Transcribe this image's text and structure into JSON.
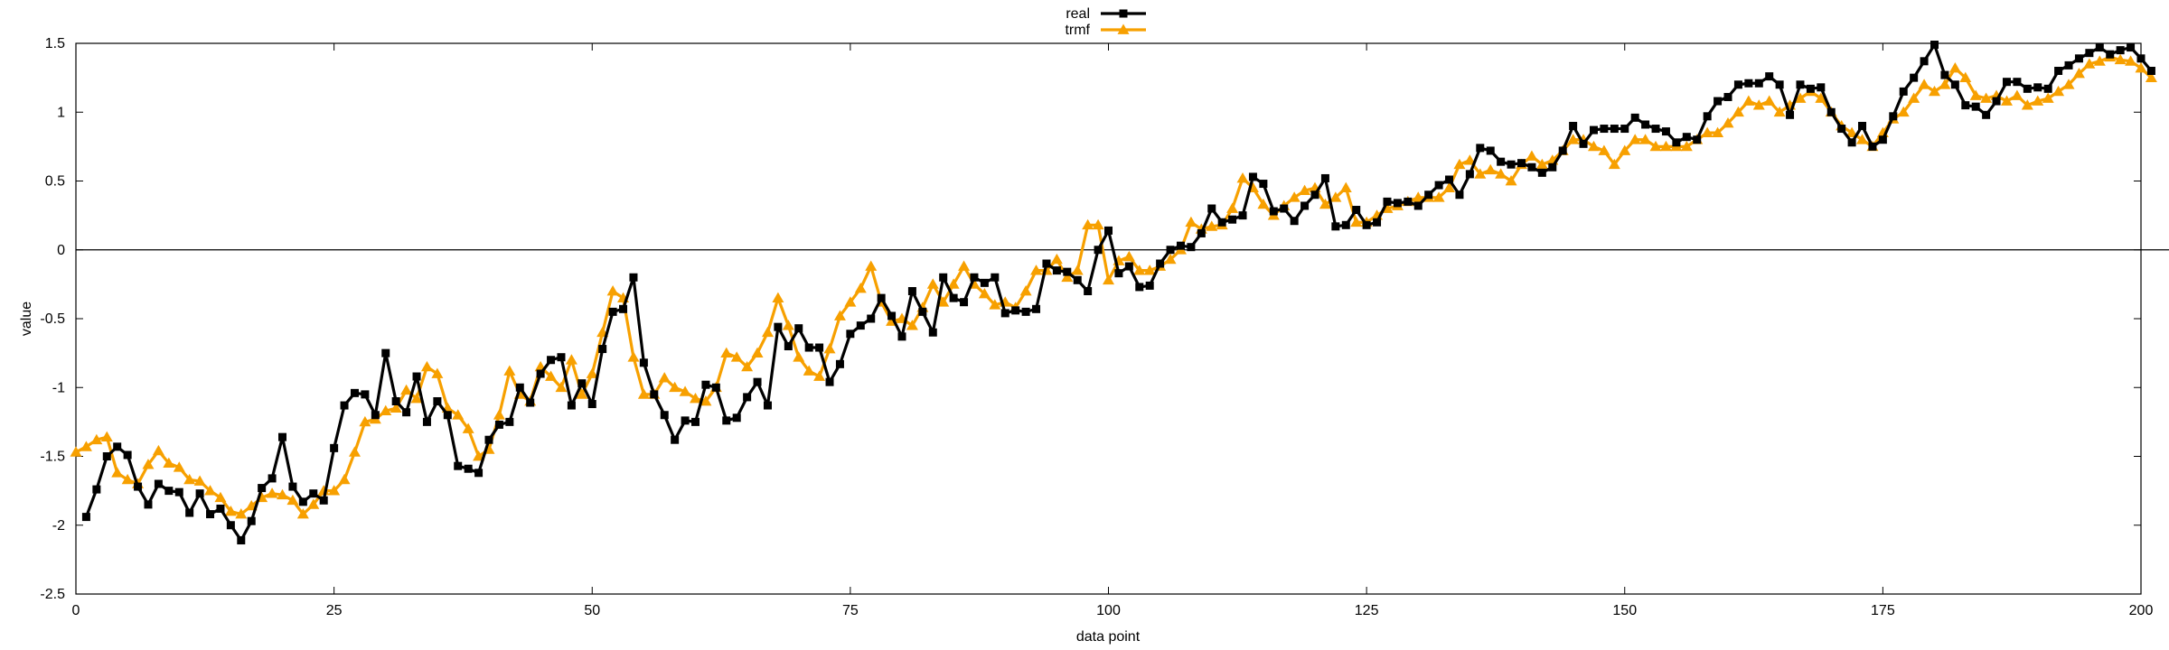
{
  "chart_data": {
    "type": "line",
    "title": "",
    "xlabel": "data point",
    "ylabel": "value",
    "xlim": [
      0,
      200
    ],
    "ylim": [
      -2.5,
      1.5
    ],
    "xticks": [
      0,
      25,
      50,
      75,
      100,
      125,
      150,
      175,
      200
    ],
    "xtick_labels": [
      "0",
      "25",
      "50",
      "75",
      "100",
      "125",
      "150",
      "175",
      "200"
    ],
    "yticks": [
      -2.5,
      -2,
      -1.5,
      -1,
      -0.5,
      0,
      0.5,
      1,
      1.5
    ],
    "ytick_labels": [
      "-2.5",
      "-2",
      "-1.5",
      "-1",
      "-0.5",
      "0",
      "0.5",
      "1",
      "1.5"
    ],
    "zero_line": true,
    "grid": false,
    "legend_position": "top-center",
    "series": [
      {
        "name": "real",
        "color": "#000000",
        "marker": "square",
        "x_start": 1,
        "values": [
          -1.94,
          -1.74,
          -1.5,
          -1.43,
          -1.49,
          -1.72,
          -1.85,
          -1.7,
          -1.75,
          -1.76,
          -1.91,
          -1.77,
          -1.92,
          -1.88,
          -2.0,
          -2.11,
          -1.97,
          -1.73,
          -1.66,
          -1.36,
          -1.72,
          -1.83,
          -1.77,
          -1.82,
          -1.44,
          -1.13,
          -1.04,
          -1.05,
          -1.2,
          -0.75,
          -1.1,
          -1.18,
          -0.92,
          -1.25,
          -1.1,
          -1.2,
          -1.57,
          -1.59,
          -1.62,
          -1.38,
          -1.27,
          -1.25,
          -1.0,
          -1.11,
          -0.9,
          -0.8,
          -0.78,
          -1.13,
          -0.97,
          -1.12,
          -0.72,
          -0.45,
          -0.43,
          -0.2,
          -0.82,
          -1.05,
          -1.2,
          -1.38,
          -1.24,
          -1.25,
          -0.98,
          -1.0,
          -1.24,
          -1.22,
          -1.07,
          -0.96,
          -1.13,
          -0.56,
          -0.7,
          -0.57,
          -0.71,
          -0.71,
          -0.96,
          -0.83,
          -0.61,
          -0.55,
          -0.5,
          -0.35,
          -0.48,
          -0.63,
          -0.3,
          -0.45,
          -0.6,
          -0.2,
          -0.35,
          -0.38,
          -0.2,
          -0.24,
          -0.2,
          -0.46,
          -0.44,
          -0.45,
          -0.43,
          -0.1,
          -0.15,
          -0.16,
          -0.22,
          -0.3,
          0.0,
          0.14,
          -0.17,
          -0.12,
          -0.27,
          -0.26,
          -0.1,
          0.0,
          0.03,
          0.02,
          0.12,
          0.3,
          0.2,
          0.22,
          0.25,
          0.53,
          0.48,
          0.28,
          0.3,
          0.21,
          0.32,
          0.4,
          0.52,
          0.17,
          0.18,
          0.29,
          0.18,
          0.2,
          0.35,
          0.34,
          0.35,
          0.32,
          0.4,
          0.47,
          0.51,
          0.4,
          0.55,
          0.74,
          0.72,
          0.64,
          0.62,
          0.63,
          0.6,
          0.56,
          0.6,
          0.72,
          0.9,
          0.77,
          0.87,
          0.88,
          0.88,
          0.88,
          0.96,
          0.91,
          0.88,
          0.86,
          0.78,
          0.82,
          0.8,
          0.97,
          1.08,
          1.11,
          1.2,
          1.21,
          1.21,
          1.26,
          1.2,
          0.98,
          1.2,
          1.17,
          1.18,
          1.0,
          0.88,
          0.78,
          0.9,
          0.75,
          0.8,
          0.97,
          1.15,
          1.25,
          1.37,
          1.49,
          1.27,
          1.2,
          1.05,
          1.04,
          0.98,
          1.08,
          1.22,
          1.22,
          1.17,
          1.18,
          1.17,
          1.3,
          1.34,
          1.39,
          1.43,
          1.47,
          1.42,
          1.45,
          1.47,
          1.39,
          1.3
        ]
      },
      {
        "name": "trmf",
        "color": "#f7a000",
        "marker": "triangle",
        "x_start": 0,
        "values": [
          -1.47,
          -1.43,
          -1.38,
          -1.36,
          -1.62,
          -1.67,
          -1.7,
          -1.56,
          -1.46,
          -1.55,
          -1.58,
          -1.67,
          -1.68,
          -1.75,
          -1.8,
          -1.9,
          -1.92,
          -1.86,
          -1.8,
          -1.77,
          -1.78,
          -1.82,
          -1.92,
          -1.85,
          -1.75,
          -1.75,
          -1.67,
          -1.47,
          -1.25,
          -1.23,
          -1.17,
          -1.15,
          -1.02,
          -1.08,
          -0.85,
          -0.9,
          -1.15,
          -1.2,
          -1.3,
          -1.5,
          -1.45,
          -1.2,
          -0.88,
          -1.05,
          -1.1,
          -0.85,
          -0.92,
          -1.0,
          -0.8,
          -1.05,
          -0.9,
          -0.6,
          -0.3,
          -0.35,
          -0.78,
          -1.05,
          -1.05,
          -0.93,
          -1.0,
          -1.03,
          -1.08,
          -1.1,
          -1.0,
          -0.75,
          -0.78,
          -0.85,
          -0.75,
          -0.6,
          -0.35,
          -0.55,
          -0.78,
          -0.88,
          -0.92,
          -0.72,
          -0.48,
          -0.38,
          -0.28,
          -0.12,
          -0.38,
          -0.52,
          -0.5,
          -0.55,
          -0.42,
          -0.25,
          -0.38,
          -0.25,
          -0.12,
          -0.25,
          -0.32,
          -0.4,
          -0.38,
          -0.42,
          -0.3,
          -0.15,
          -0.15,
          -0.07,
          -0.2,
          -0.15,
          0.18,
          0.18,
          -0.22,
          -0.08,
          -0.05,
          -0.15,
          -0.15,
          -0.12,
          -0.07,
          0.0,
          0.2,
          0.15,
          0.17,
          0.18,
          0.3,
          0.52,
          0.45,
          0.33,
          0.25,
          0.32,
          0.38,
          0.43,
          0.45,
          0.33,
          0.38,
          0.45,
          0.2,
          0.2,
          0.25,
          0.3,
          0.32,
          0.35,
          0.38,
          0.38,
          0.38,
          0.45,
          0.62,
          0.65,
          0.55,
          0.58,
          0.55,
          0.5,
          0.62,
          0.68,
          0.62,
          0.65,
          0.72,
          0.8,
          0.8,
          0.75,
          0.72,
          0.62,
          0.72,
          0.8,
          0.8,
          0.75,
          0.75,
          0.75,
          0.75,
          0.8,
          0.85,
          0.85,
          0.92,
          1.0,
          1.08,
          1.05,
          1.08,
          1.0,
          1.05,
          1.1,
          1.15,
          1.1,
          1.0,
          0.9,
          0.85,
          0.8,
          0.75,
          0.85,
          0.95,
          1.0,
          1.1,
          1.2,
          1.15,
          1.2,
          1.32,
          1.25,
          1.12,
          1.1,
          1.12,
          1.08,
          1.12,
          1.05,
          1.08,
          1.1,
          1.15,
          1.2,
          1.28,
          1.35,
          1.37,
          1.4,
          1.38,
          1.37,
          1.32,
          1.25
        ]
      }
    ]
  }
}
